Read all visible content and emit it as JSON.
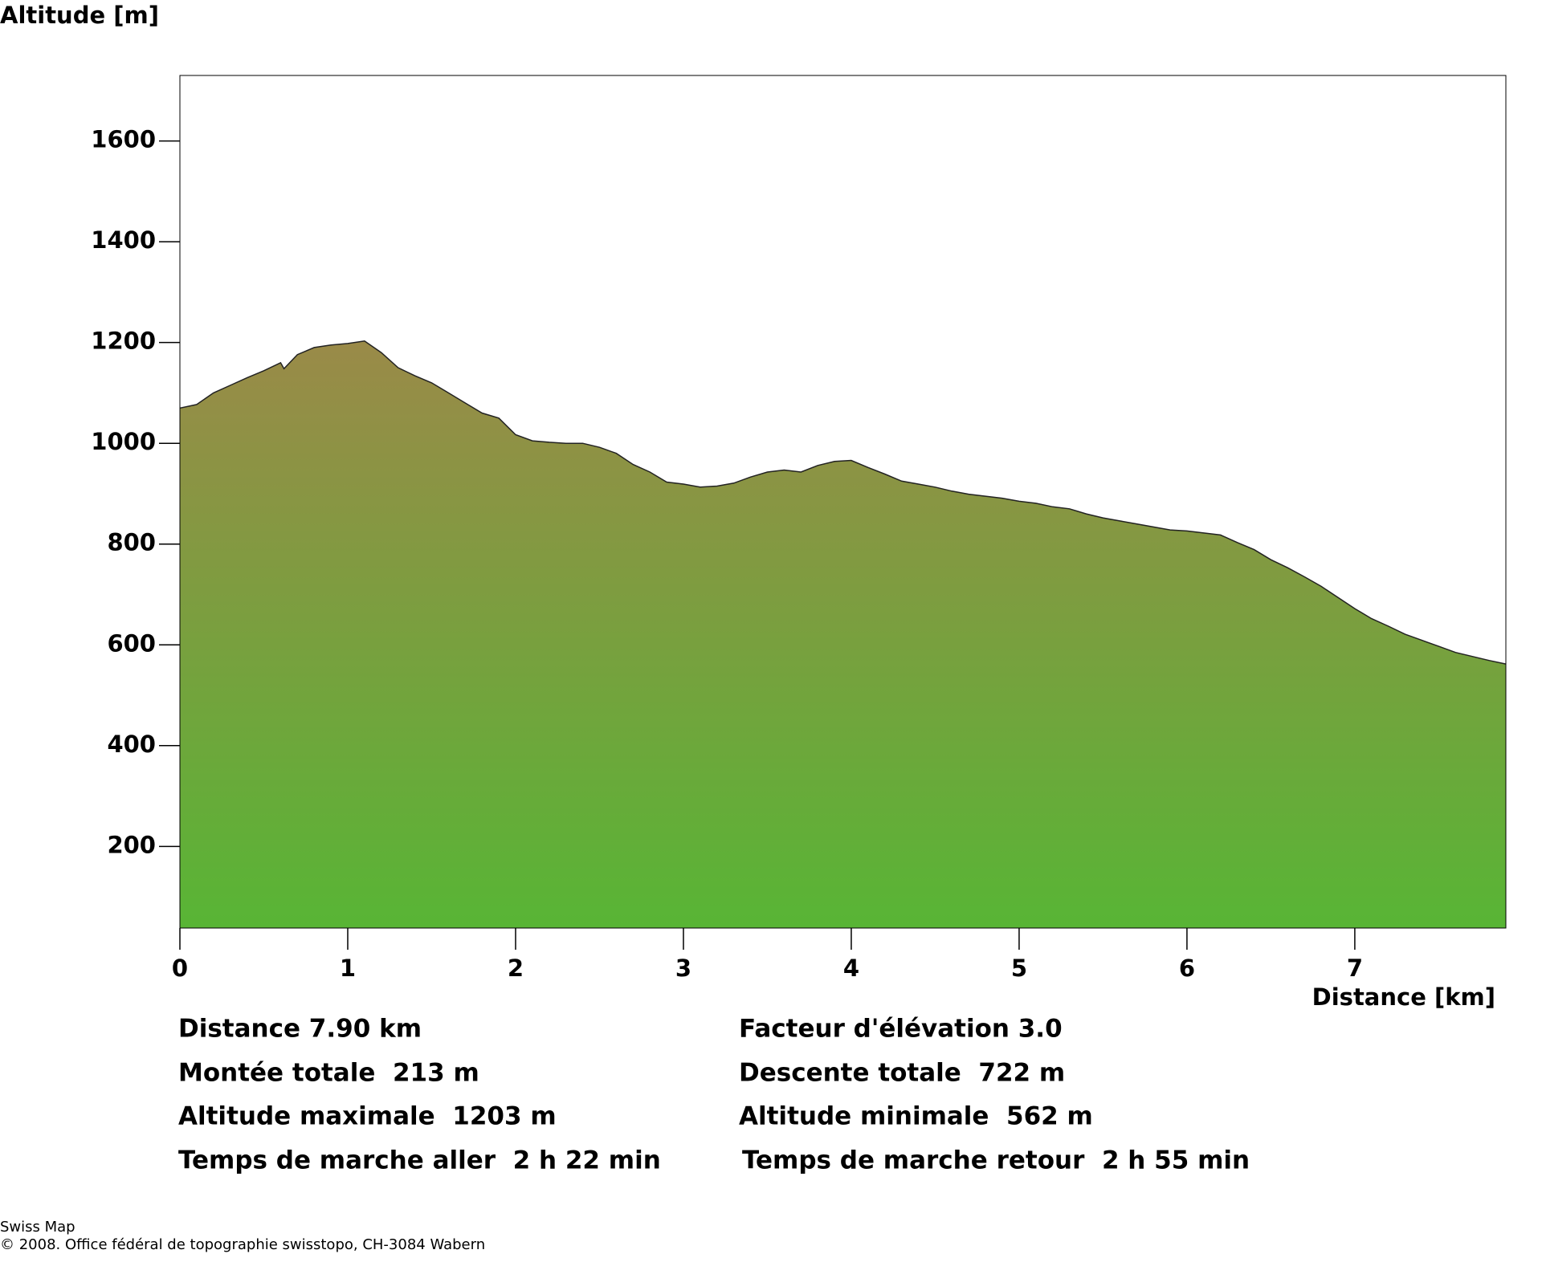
{
  "chart_data": {
    "type": "area",
    "ylabel": "Altitude [m]",
    "xlabel": "Distance [km]",
    "x": [
      0,
      0.1,
      0.2,
      0.3,
      0.4,
      0.5,
      0.6,
      0.62,
      0.7,
      0.8,
      0.9,
      1.0,
      1.1,
      1.2,
      1.3,
      1.4,
      1.5,
      1.6,
      1.7,
      1.8,
      1.9,
      2.0,
      2.1,
      2.2,
      2.3,
      2.4,
      2.5,
      2.6,
      2.7,
      2.8,
      2.9,
      3.0,
      3.1,
      3.2,
      3.3,
      3.4,
      3.5,
      3.6,
      3.7,
      3.8,
      3.9,
      4.0,
      4.1,
      4.2,
      4.3,
      4.4,
      4.5,
      4.6,
      4.7,
      4.8,
      4.9,
      5.0,
      5.1,
      5.2,
      5.3,
      5.4,
      5.5,
      5.6,
      5.7,
      5.8,
      5.9,
      6.0,
      6.1,
      6.2,
      6.3,
      6.4,
      6.5,
      6.6,
      6.7,
      6.8,
      6.9,
      7.0,
      7.1,
      7.2,
      7.3,
      7.4,
      7.5,
      7.6,
      7.7,
      7.8,
      7.9
    ],
    "y": [
      1070,
      1077,
      1100,
      1115,
      1130,
      1144,
      1160,
      1148,
      1176,
      1190,
      1195,
      1198,
      1203,
      1180,
      1150,
      1134,
      1120,
      1100,
      1080,
      1060,
      1050,
      1017,
      1005,
      1002,
      1000,
      1000,
      992,
      980,
      958,
      943,
      923,
      919,
      913,
      915,
      921,
      933,
      943,
      947,
      943,
      956,
      964,
      966,
      952,
      939,
      925,
      919,
      913,
      905,
      899,
      895,
      891,
      885,
      881,
      874,
      870,
      860,
      852,
      846,
      840,
      834,
      828,
      826,
      822,
      818,
      803,
      789,
      769,
      753,
      735,
      716,
      694,
      672,
      652,
      637,
      621,
      609,
      597,
      585,
      577,
      569,
      562
    ],
    "xlim": [
      0,
      7.9
    ],
    "ylim": [
      38,
      1730
    ],
    "xticks": [
      0,
      1,
      2,
      3,
      4,
      5,
      6,
      7
    ],
    "yticks": [
      200,
      400,
      600,
      800,
      1000,
      1200,
      1400,
      1600
    ],
    "fill_top": "#9a8a48",
    "fill_bottom": "#58b535",
    "stats": [
      "Distance 7.90 km",
      "Facteur d'élévation 3.0",
      "Montée totale  213 m",
      "Descente totale  722 m",
      "Altitude maximale  1203 m",
      "Altitude minimale  562 m",
      "Temps de marche aller  2 h 22 min",
      "Temps de marche retour  2 h 55 min"
    ]
  },
  "footer": [
    "Swiss Map",
    "© 2008. Office fédéral de topographie swisstopo, CH-3084 Wabern"
  ]
}
